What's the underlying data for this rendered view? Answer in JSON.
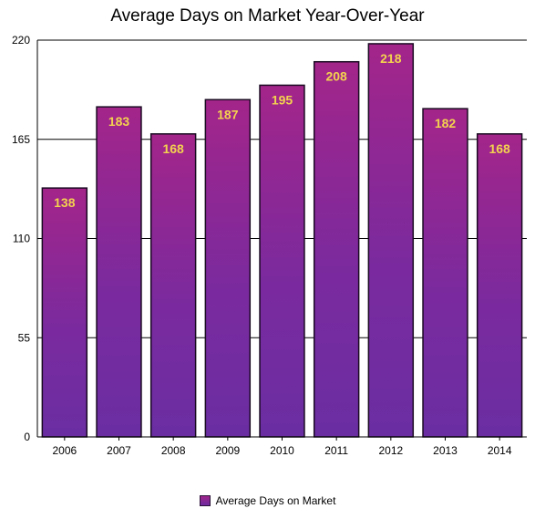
{
  "chart_data": {
    "type": "bar",
    "title": "Average Days on Market Year-Over-Year",
    "categories": [
      "2006",
      "2007",
      "2008",
      "2009",
      "2010",
      "2011",
      "2012",
      "2013",
      "2014"
    ],
    "series": [
      {
        "name": "Average Days on Market",
        "values": [
          138,
          183,
          168,
          187,
          195,
          208,
          218,
          182,
          168
        ]
      }
    ],
    "ylim": [
      0,
      220
    ],
    "yticks": [
      "0",
      "55",
      "110",
      "165",
      "220"
    ],
    "grid": true,
    "legend_position": "bottom",
    "colors": {
      "bar_top": "#a3258a",
      "bar_bottom": "#6a2ea2",
      "label": "#f3d24f"
    }
  }
}
